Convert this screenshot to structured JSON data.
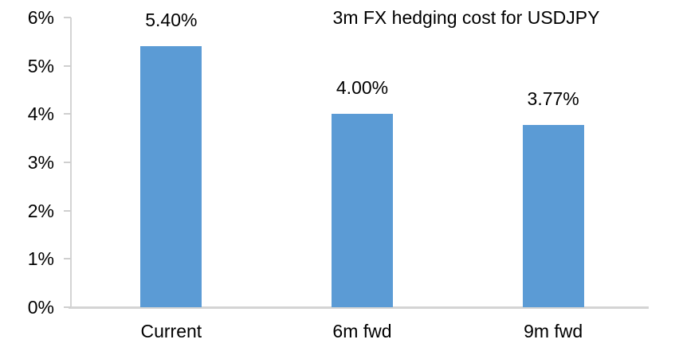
{
  "chart_data": {
    "type": "bar",
    "title": "3m FX hedging cost for USDJPY",
    "categories": [
      "Current",
      "6m fwd",
      "9m fwd"
    ],
    "values": [
      5.4,
      4.0,
      3.77
    ],
    "data_labels": [
      "5.40%",
      "4.00%",
      "3.77%"
    ],
    "xlabel": "",
    "ylabel": "",
    "ylim": [
      0,
      6
    ],
    "yticks": [
      0,
      1,
      2,
      3,
      4,
      5,
      6
    ],
    "ytick_labels": [
      "0%",
      "1%",
      "2%",
      "3%",
      "4%",
      "5%",
      "6%"
    ],
    "grid": false,
    "legend": false,
    "colors": {
      "bar": "#5B9BD5",
      "axis": "#D4D4D4",
      "tick": "#CFCFCF",
      "text": "#000000",
      "background": "#FFFFFF"
    }
  }
}
